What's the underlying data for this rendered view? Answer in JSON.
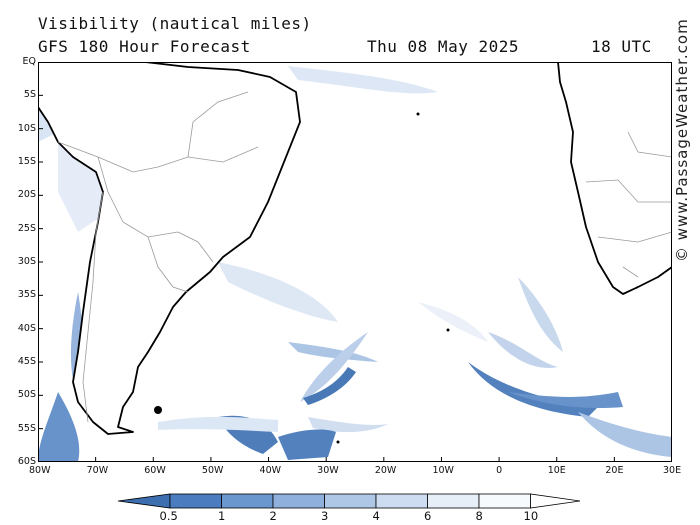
{
  "title": {
    "line1": "Visibility (nautical miles)",
    "line2": "GFS 180 Hour Forecast",
    "date": "Thu 08 May 2025",
    "time": "18 UTC"
  },
  "watermark": "© www.PassageWeather.com",
  "map": {
    "region": "South Atlantic",
    "lat_labels": [
      "EQ",
      "5S",
      "10S",
      "15S",
      "20S",
      "25S",
      "30S",
      "35S",
      "40S",
      "45S",
      "50S",
      "55S",
      "60S"
    ],
    "lon_labels": [
      "80W",
      "70W",
      "60W",
      "50W",
      "40W",
      "30W",
      "20W",
      "10W",
      "0",
      "10E",
      "20E",
      "30E"
    ],
    "features": [
      "coastline",
      "country-borders",
      "visibility-field"
    ],
    "colors": {
      "land": "#ffffff",
      "coast": "#000000",
      "border": "#9a9a9a",
      "frame": "#000000"
    }
  },
  "legend": {
    "labels": [
      "0.5",
      "1",
      "2",
      "3",
      "4",
      "6",
      "8",
      "10"
    ],
    "colors": [
      "#3d6fb0",
      "#4a7cbf",
      "#6b97cf",
      "#8fb0dc",
      "#afc7e6",
      "#cddcf0",
      "#e6eef8",
      "#f7fafd",
      "#ffffff"
    ]
  }
}
